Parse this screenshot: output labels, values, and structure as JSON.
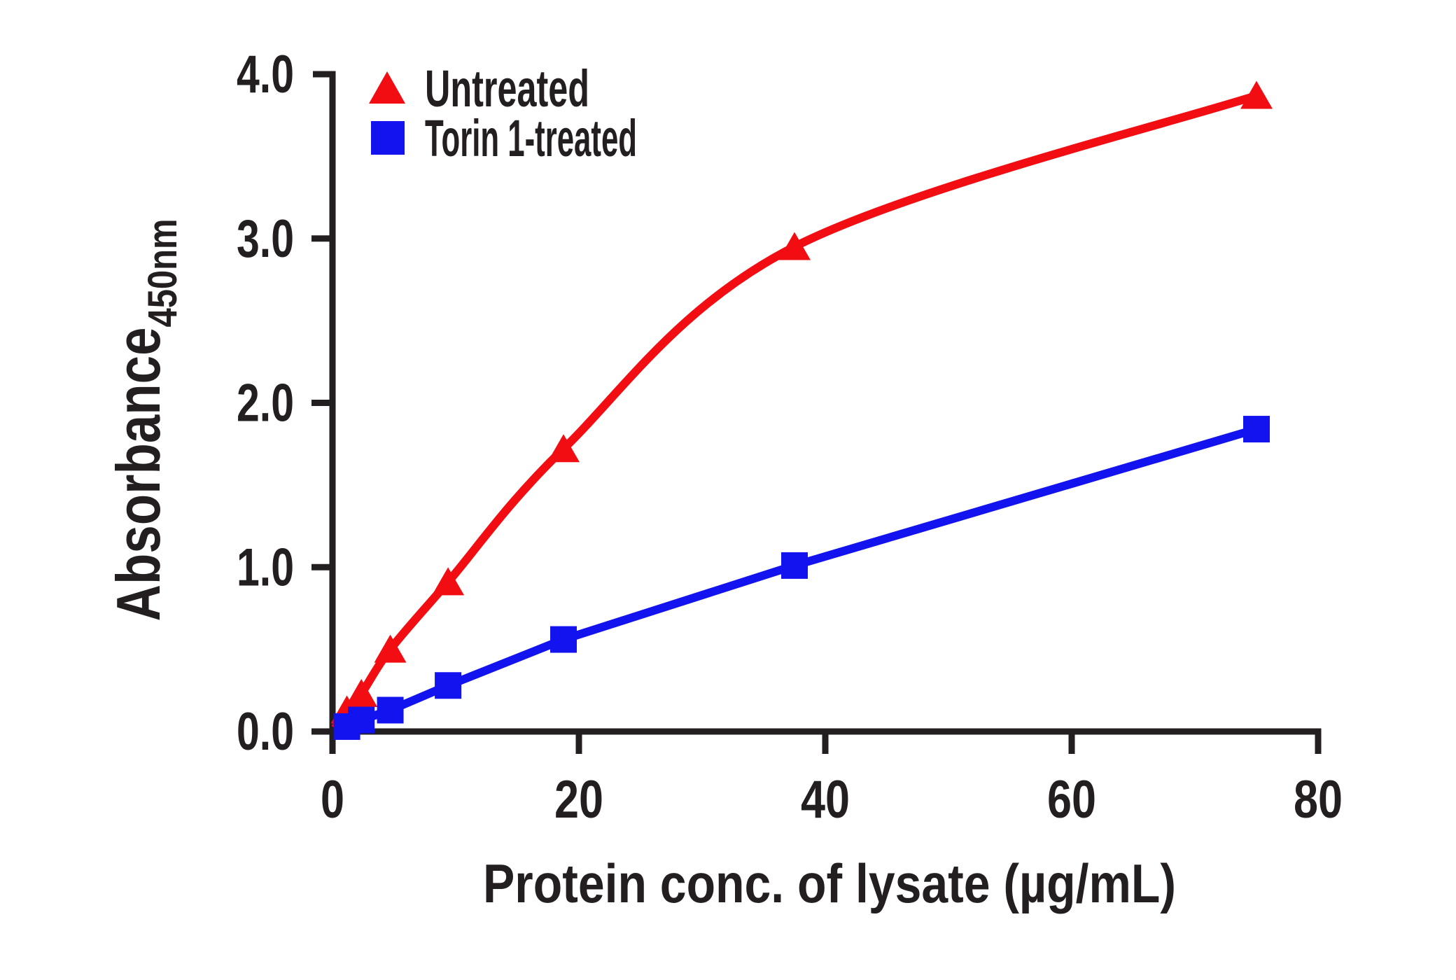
{
  "figure": {
    "background": "#ffffff",
    "text_color": "#231f20"
  },
  "legend": {
    "position": "top-left",
    "items": [
      {
        "label": "Untreated",
        "marker": "triangle",
        "color": "#f20d12"
      },
      {
        "label": "Torin 1-treated",
        "marker": "square",
        "color": "#1313f0"
      }
    ]
  },
  "chart_data": {
    "type": "line",
    "title": "",
    "xlabel": "Protein conc. of lysate (µg/mL)",
    "ylabel": "Absorbance",
    "ylabel_subscript": "450nm",
    "xlim": [
      0,
      80
    ],
    "ylim": [
      0.0,
      4.0
    ],
    "xticks": [
      0,
      20,
      40,
      60,
      80
    ],
    "xtick_labels": [
      "0",
      "20",
      "40",
      "60",
      "80"
    ],
    "ytick_labels": [
      "0.0",
      "1.0",
      "2.0",
      "3.0",
      "4.0"
    ],
    "grid": false,
    "legend_position": "top-left",
    "series": [
      {
        "name": "Untreated",
        "marker": "triangle",
        "color": "#f20d12",
        "line": "smooth",
        "x": [
          1.17,
          2.34,
          4.69,
          9.38,
          18.75,
          37.5,
          75
        ],
        "y": [
          0.13,
          0.23,
          0.5,
          0.91,
          1.72,
          2.95,
          3.87
        ]
      },
      {
        "name": "Torin 1-treated",
        "marker": "square",
        "color": "#1313f0",
        "line": "straight",
        "x": [
          1.17,
          2.34,
          4.69,
          9.38,
          18.75,
          37.5,
          75
        ],
        "y": [
          0.03,
          0.07,
          0.13,
          0.28,
          0.56,
          1.01,
          1.84
        ]
      }
    ]
  }
}
